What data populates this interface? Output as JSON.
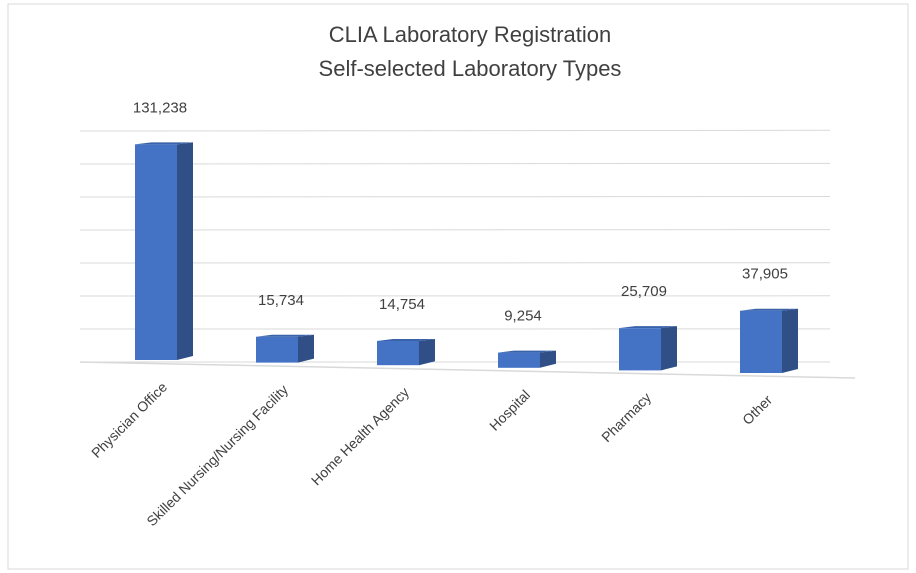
{
  "chart_data": {
    "type": "bar3d",
    "title": "CLIA Laboratory Registration",
    "subtitle": "Self-selected Laboratory Types",
    "categories": [
      "Physician Office",
      "Skilled Nursing/Nursing Facility",
      "Home Health Agency",
      "Hospital",
      "Pharmacy",
      "Other"
    ],
    "values": [
      131238,
      15734,
      14754,
      9254,
      25709,
      37905
    ],
    "value_labels": [
      "131,238",
      "15,734",
      "14,754",
      "9,254",
      "25,709",
      "37,905"
    ],
    "color": "#4472c4",
    "ylim": [
      0,
      140000
    ],
    "grid": true
  }
}
